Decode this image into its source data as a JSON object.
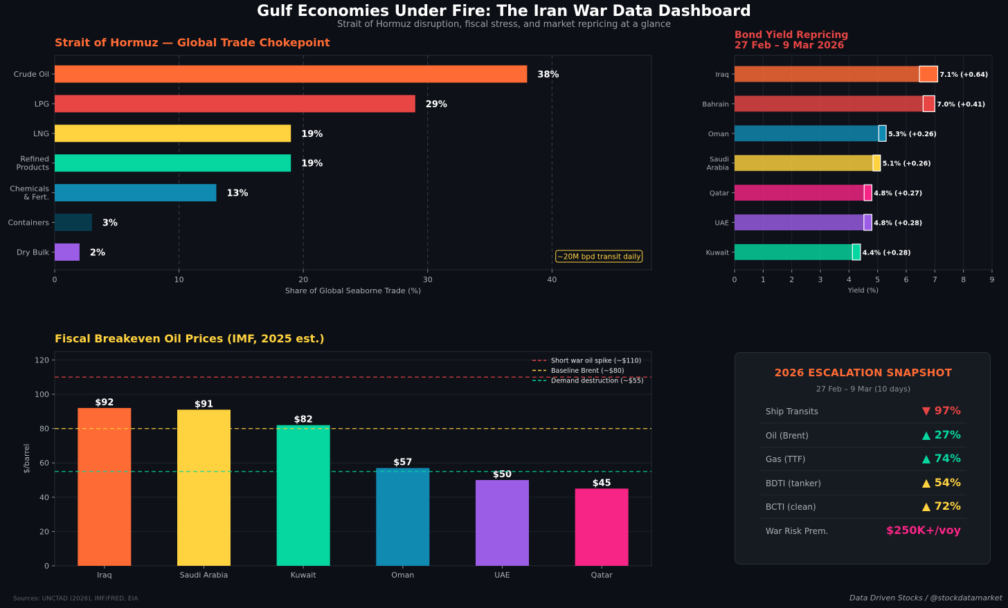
{
  "header": {
    "title": "Gulf Economies Under Fire: The Iran War Data Dashboard",
    "subtitle": "Strait of Hormuz disruption, fiscal stress, and market repricing at a glance"
  },
  "chart_data": [
    {
      "type": "bar",
      "orientation": "horizontal",
      "title": "Strait of Hormuz — Global Trade Chokepoint",
      "title_color": "#ff6b35",
      "xlabel": "Share of Global Seaborne Trade (%)",
      "ylabel": "",
      "xlim": [
        0,
        48
      ],
      "xticks": [
        0,
        10,
        20,
        30,
        40
      ],
      "categories": [
        "Crude Oil",
        "LPG",
        "LNG",
        "Refined Products",
        "Chemicals & Fert.",
        "Containers",
        "Dry Bulk"
      ],
      "category_lines": [
        [
          "Crude Oil"
        ],
        [
          "LPG"
        ],
        [
          "LNG"
        ],
        [
          "Refined",
          "Products"
        ],
        [
          "Chemicals",
          "& Fert."
        ],
        [
          "Containers"
        ],
        [
          "Dry Bulk"
        ]
      ],
      "values": [
        38,
        29,
        19,
        19,
        13,
        3,
        2
      ],
      "value_labels": [
        "38%",
        "29%",
        "19%",
        "19%",
        "13%",
        "3%",
        "2%"
      ],
      "colors": [
        "#ff6b35",
        "#e84545",
        "#ffd23f",
        "#06d6a0",
        "#118ab2",
        "#073b4c",
        "#9b5de5"
      ],
      "annotation": "~20M bpd transit daily",
      "grid": true
    },
    {
      "type": "bar",
      "orientation": "horizontal",
      "title": "Bond Yield Repricing",
      "title_line2": "27 Feb – 9 Mar 2026",
      "title_color": "#e84545",
      "xlabel": "Yield (%)",
      "xlim": [
        0,
        9
      ],
      "xticks": [
        0,
        1,
        2,
        3,
        4,
        5,
        6,
        7,
        8,
        9
      ],
      "categories": [
        "Iraq",
        "Bahrain",
        "Oman",
        "Saudi Arabia",
        "Qatar",
        "UAE",
        "Kuwait"
      ],
      "category_lines": [
        [
          "Iraq"
        ],
        [
          "Bahrain"
        ],
        [
          "Oman"
        ],
        [
          "Saudi",
          "Arabia"
        ],
        [
          "Qatar"
        ],
        [
          "UAE"
        ],
        [
          "Kuwait"
        ]
      ],
      "base_yields": [
        6.46,
        6.59,
        5.04,
        4.84,
        4.53,
        4.52,
        4.12
      ],
      "yields": [
        7.1,
        7.0,
        5.3,
        5.1,
        4.8,
        4.8,
        4.4
      ],
      "changes": [
        0.64,
        0.41,
        0.26,
        0.26,
        0.27,
        0.28,
        0.28
      ],
      "value_labels": [
        "7.1% (+0.64)",
        "7.0% (+0.41)",
        "5.3% (+0.26)",
        "5.1% (+0.26)",
        "4.8% (+0.27)",
        "4.8% (+0.28)",
        "4.4% (+0.28)"
      ],
      "colors": [
        "#ff6b35",
        "#e84545",
        "#118ab2",
        "#ffd23f",
        "#f72585",
        "#9b5de5",
        "#06d6a0"
      ],
      "grid": true
    },
    {
      "type": "bar",
      "orientation": "vertical",
      "title": "Fiscal Breakeven Oil Prices (IMF, 2025 est.)",
      "title_color": "#ffd23f",
      "xlabel": "",
      "ylabel": "$/barrel",
      "ylim": [
        0,
        125
      ],
      "yticks": [
        0,
        20,
        40,
        60,
        80,
        100,
        120
      ],
      "categories": [
        "Iraq",
        "Saudi Arabia",
        "Kuwait",
        "Oman",
        "UAE",
        "Qatar"
      ],
      "values": [
        92,
        91,
        82,
        57,
        50,
        45
      ],
      "value_labels": [
        "$92",
        "$91",
        "$82",
        "$57",
        "$50",
        "$45"
      ],
      "colors": [
        "#ff6b35",
        "#ffd23f",
        "#06d6a0",
        "#118ab2",
        "#9b5de5",
        "#f72585"
      ],
      "reference_lines": [
        {
          "label": "Short war oil spike (~$110)",
          "value": 110,
          "color": "#e84545"
        },
        {
          "label": "Baseline Brent (~$80)",
          "value": 80,
          "color": "#ffd23f"
        },
        {
          "label": "Demand destruction (~$55)",
          "value": 55,
          "color": "#06d6a0"
        }
      ],
      "legend": "top-right",
      "grid": true
    }
  ],
  "snapshot": {
    "title": "2026 ESCALATION SNAPSHOT",
    "subtitle": "27 Feb – 9 Mar (10 days)",
    "rows": [
      {
        "label": "Ship Transits",
        "value": "▼ 97%",
        "color": "#e84545"
      },
      {
        "label": "Oil (Brent)",
        "value": "▲ 27%",
        "color": "#06d6a0"
      },
      {
        "label": "Gas (TTF)",
        "value": "▲ 74%",
        "color": "#06d6a0"
      },
      {
        "label": "BDTI (tanker)",
        "value": "▲ 54%",
        "color": "#ffd23f"
      },
      {
        "label": "BCTI (clean)",
        "value": "▲ 72%",
        "color": "#ffd23f"
      },
      {
        "label": "War Risk Prem.",
        "value": "$250K+/voy",
        "color": "#f72585"
      }
    ]
  },
  "footer": {
    "sources": "Sources: UNCTAD (2026), IMF/FRED, EIA",
    "credit": "Data Driven Stocks / @stockdatamarket"
  }
}
